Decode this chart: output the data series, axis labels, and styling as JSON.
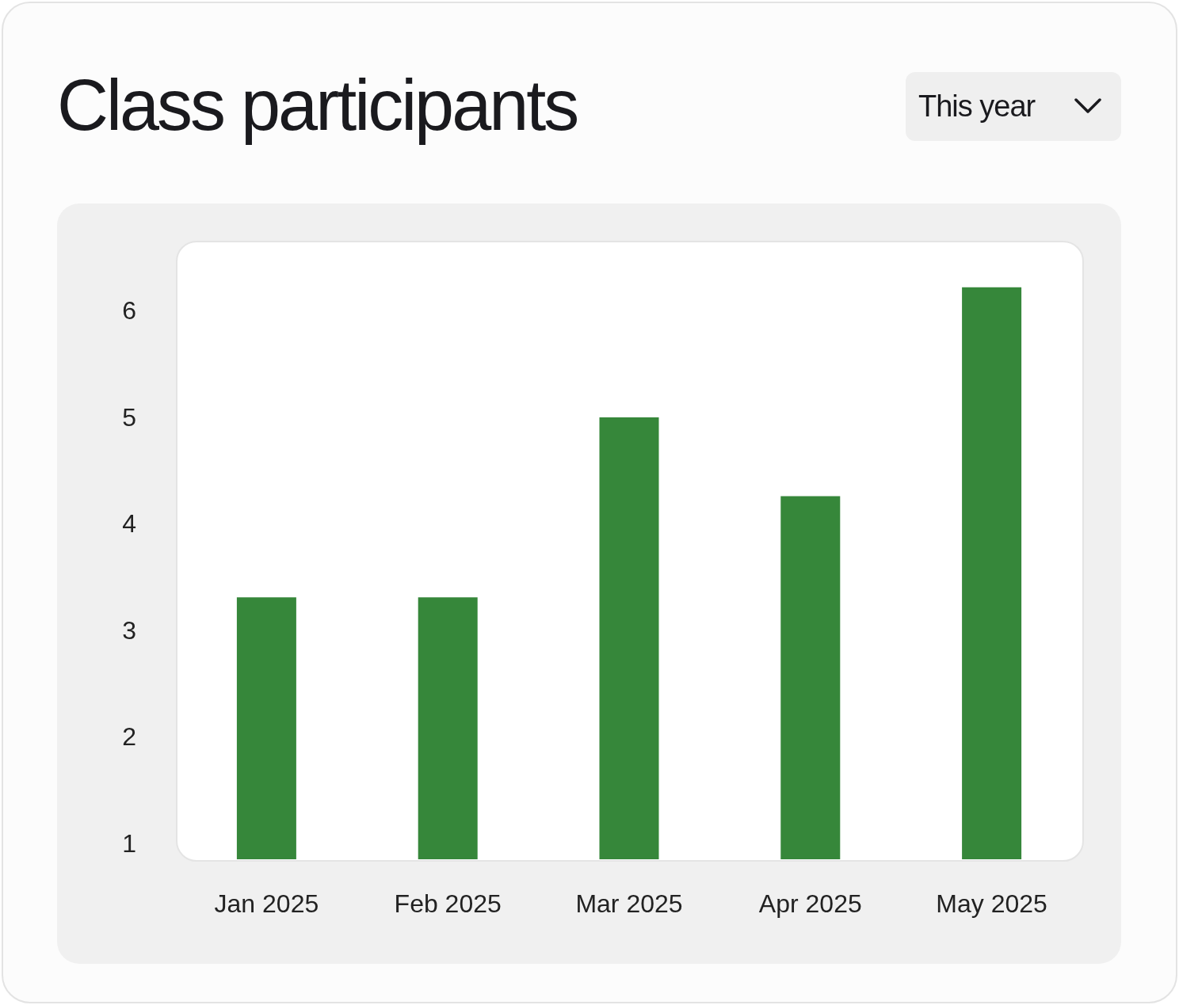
{
  "chart_data": {
    "type": "bar",
    "title": "Class participants",
    "annotations": [
      "This year"
    ],
    "categories": [
      "Jan 2025",
      "Feb 2025",
      "Mar 2025",
      "Apr 2025",
      "May 2025"
    ],
    "values": [
      3.31,
      3.31,
      5.0,
      4.26,
      6.22
    ],
    "color": "#36873a",
    "ylim": [
      0.85,
      6.65
    ],
    "yticks": [
      1,
      2,
      3,
      4,
      5,
      6
    ],
    "grid": false
  }
}
